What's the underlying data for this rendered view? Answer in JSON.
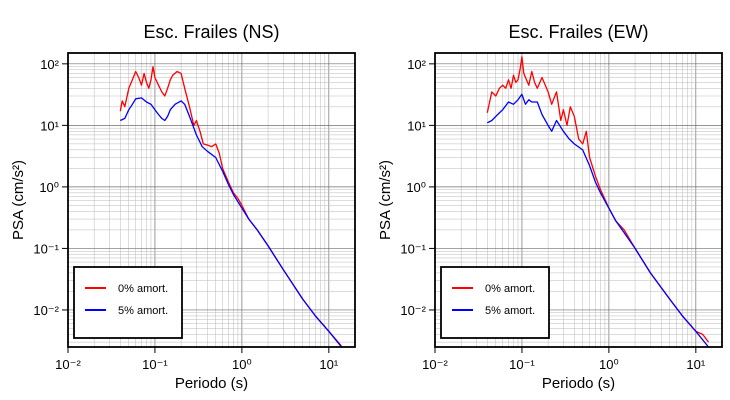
{
  "chart_data": [
    {
      "type": "line",
      "title": "Esc. Frailes (NS)",
      "xlabel": "Periodo (s)",
      "ylabel": "PSA (cm/s²)",
      "x_scale": "log",
      "y_scale": "log",
      "xlim": [
        0.01,
        20
      ],
      "ylim": [
        0.0025,
        150
      ],
      "x_ticks": [
        "10⁻²",
        "10⁻¹",
        "10⁰",
        "10¹"
      ],
      "y_ticks": [
        "10⁻²",
        "10⁻¹",
        "10⁰",
        "10¹",
        "10²"
      ],
      "grid": true,
      "legend": "bottom-left",
      "series": [
        {
          "name": "0% amort.",
          "color": "#ff0000",
          "x": [
            0.04,
            0.042,
            0.045,
            0.05,
            0.055,
            0.06,
            0.065,
            0.07,
            0.075,
            0.08,
            0.085,
            0.09,
            0.095,
            0.1,
            0.11,
            0.12,
            0.13,
            0.14,
            0.15,
            0.16,
            0.18,
            0.2,
            0.22,
            0.25,
            0.28,
            0.3,
            0.33,
            0.36,
            0.4,
            0.45,
            0.5,
            0.55,
            0.6,
            0.7,
            0.8,
            0.9,
            1.0,
            1.2,
            1.5,
            2,
            3,
            5,
            7,
            10,
            14
          ],
          "values": [
            17,
            25,
            20,
            40,
            55,
            75,
            60,
            45,
            70,
            50,
            40,
            55,
            90,
            60,
            45,
            35,
            30,
            40,
            55,
            65,
            75,
            70,
            40,
            20,
            10,
            12,
            8,
            5,
            4.8,
            4.5,
            5.0,
            3.5,
            2.0,
            1.2,
            0.8,
            0.65,
            0.5,
            0.3,
            0.2,
            0.11,
            0.045,
            0.015,
            0.008,
            0.0045,
            0.0026
          ]
        },
        {
          "name": "5% amort.",
          "color": "#0000ff",
          "x": [
            0.04,
            0.045,
            0.05,
            0.055,
            0.06,
            0.07,
            0.08,
            0.09,
            0.1,
            0.11,
            0.12,
            0.13,
            0.14,
            0.15,
            0.17,
            0.2,
            0.22,
            0.25,
            0.3,
            0.35,
            0.4,
            0.5,
            0.6,
            0.7,
            0.8,
            1.0,
            1.2,
            1.5,
            2,
            3,
            5,
            7,
            10,
            14
          ],
          "values": [
            12,
            13,
            18,
            22,
            27,
            28,
            24,
            22,
            18,
            15,
            13,
            12,
            14,
            18,
            22,
            25,
            22,
            14,
            7,
            4.5,
            3.8,
            3.0,
            1.8,
            1.1,
            0.75,
            0.45,
            0.3,
            0.2,
            0.11,
            0.045,
            0.015,
            0.008,
            0.0045,
            0.0025
          ]
        }
      ]
    },
    {
      "type": "line",
      "title": "Esc. Frailes (EW)",
      "xlabel": "Periodo (s)",
      "ylabel": "PSA (cm/s²)",
      "x_scale": "log",
      "y_scale": "log",
      "xlim": [
        0.01,
        20
      ],
      "ylim": [
        0.0025,
        150
      ],
      "x_ticks": [
        "10⁻²",
        "10⁻¹",
        "10⁰",
        "10¹"
      ],
      "y_ticks": [
        "10⁻²",
        "10⁻¹",
        "10⁰",
        "10¹",
        "10²"
      ],
      "grid": true,
      "legend": "bottom-left",
      "series": [
        {
          "name": "0% amort.",
          "color": "#ff0000",
          "x": [
            0.04,
            0.045,
            0.05,
            0.055,
            0.06,
            0.065,
            0.07,
            0.075,
            0.08,
            0.085,
            0.09,
            0.095,
            0.1,
            0.105,
            0.11,
            0.12,
            0.13,
            0.14,
            0.15,
            0.17,
            0.2,
            0.22,
            0.25,
            0.28,
            0.3,
            0.33,
            0.36,
            0.4,
            0.45,
            0.5,
            0.55,
            0.6,
            0.7,
            0.8,
            1.0,
            1.2,
            1.5,
            2,
            3,
            5,
            7,
            10,
            12,
            14
          ],
          "values": [
            16,
            35,
            30,
            40,
            45,
            40,
            55,
            40,
            65,
            50,
            55,
            80,
            130,
            70,
            60,
            45,
            75,
            50,
            40,
            60,
            35,
            22,
            35,
            12,
            18,
            10,
            20,
            14,
            6,
            5,
            8,
            3.0,
            1.5,
            0.9,
            0.45,
            0.28,
            0.2,
            0.1,
            0.04,
            0.015,
            0.008,
            0.0045,
            0.004,
            0.003
          ]
        },
        {
          "name": "5% amort.",
          "color": "#0000ff",
          "x": [
            0.04,
            0.045,
            0.05,
            0.06,
            0.07,
            0.08,
            0.09,
            0.1,
            0.11,
            0.12,
            0.13,
            0.15,
            0.17,
            0.2,
            0.22,
            0.25,
            0.3,
            0.35,
            0.4,
            0.5,
            0.6,
            0.7,
            0.8,
            1.0,
            1.2,
            1.5,
            2,
            3,
            5,
            7,
            10,
            14
          ],
          "values": [
            11,
            12,
            14,
            18,
            24,
            22,
            26,
            32,
            22,
            26,
            24,
            24,
            15,
            10,
            8,
            12,
            8,
            6,
            5,
            4,
            2.2,
            1.2,
            0.8,
            0.45,
            0.28,
            0.18,
            0.1,
            0.04,
            0.015,
            0.008,
            0.0045,
            0.0025
          ]
        }
      ]
    }
  ]
}
